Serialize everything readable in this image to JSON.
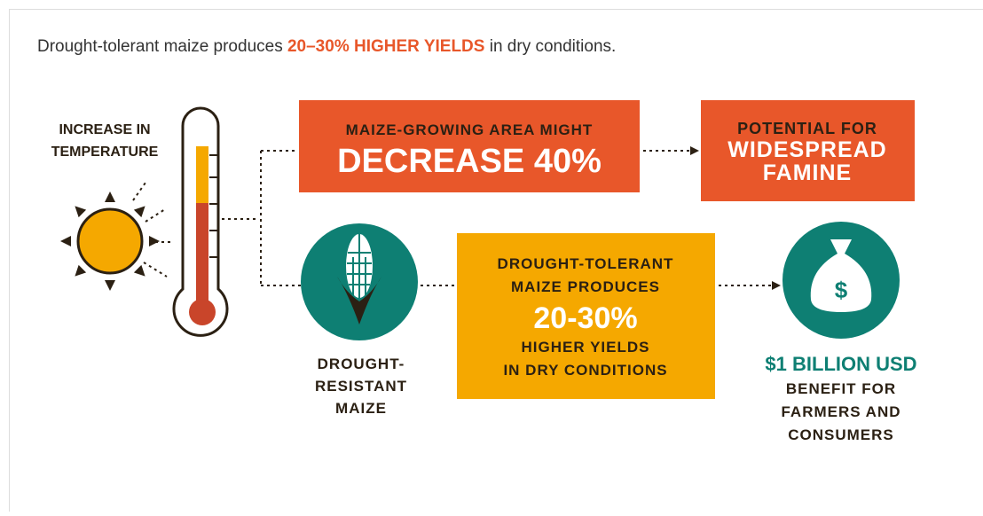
{
  "headline": {
    "before": "Drought-tolerant maize produces ",
    "highlight": "20–30% HIGHER YIELDS",
    "after": " in dry conditions."
  },
  "temperature": {
    "lines": [
      "INCREASE IN",
      "TEMPERATURE"
    ]
  },
  "area_box": {
    "lines": [
      "MAIZE-GROWING AREA MIGHT",
      "DECREASE 40%"
    ]
  },
  "famine_box": {
    "lines": [
      "POTENTIAL FOR",
      "WIDESPREAD",
      "FAMINE"
    ]
  },
  "maize": {
    "lines": [
      "DROUGHT-",
      "RESISTANT",
      "MAIZE"
    ]
  },
  "yield_box": {
    "lines": [
      "DROUGHT-TOLERANT",
      "MAIZE PRODUCES",
      "20-30%",
      "HIGHER YIELDS",
      "IN DRY CONDITIONS"
    ]
  },
  "benefit": {
    "amount": "$1 BILLION USD",
    "lines": [
      "BENEFIT FOR",
      "FARMERS AND",
      "CONSUMERS"
    ],
    "icon": "$"
  }
}
